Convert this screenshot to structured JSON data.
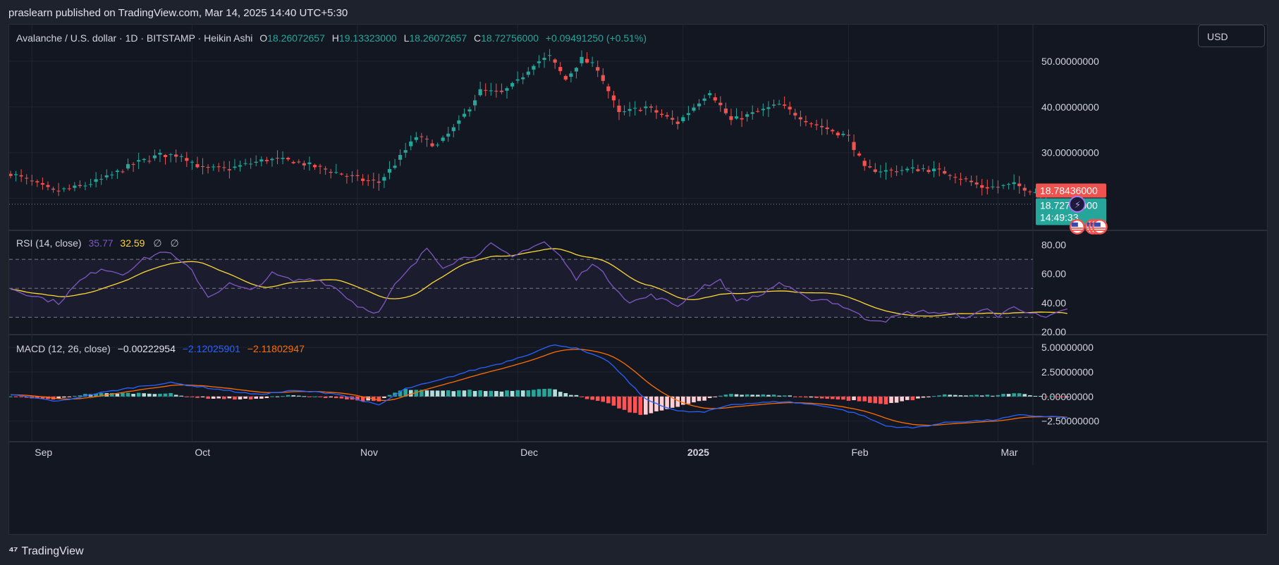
{
  "publisher_line": "praslearn published on TradingView.com, Mar 14, 2025 14:40 UTC+5:30",
  "footer_brand": "TradingView",
  "currency_button": "USD",
  "header": {
    "symbol": "Avalanche / U.S. dollar · 1D · BITSTAMP · Heikin Ashi",
    "o_label": "O",
    "o_value": "18.26072657",
    "h_label": "H",
    "h_value": "19.13323000",
    "l_label": "L",
    "l_value": "18.26072657",
    "c_label": "C",
    "c_value": "18.72756000",
    "change": "+0.09491250 (+0.51%)"
  },
  "rsi_header": {
    "label": "RSI (14, close)",
    "rsi_value": "35.77",
    "ma_value": "32.59",
    "extra1": "∅",
    "extra2": "∅"
  },
  "macd_header": {
    "label": "MACD (12, 26, close)",
    "hist_value": "−0.00222954",
    "macd_value": "−2.12025901",
    "signal_value": "−2.11802947"
  },
  "price_tags": {
    "last_price": "18.78436000",
    "close_price": "18.72756000",
    "countdown": "14:49:33"
  },
  "colors": {
    "up": "#26a69a",
    "down": "#ef5350",
    "rsi": "#7e57c2",
    "rsi_ma": "#fdd835",
    "macd": "#2962ff",
    "signal": "#ff6d00",
    "hist_up_strong": "#26a69a",
    "hist_up_weak": "#b2dfdb",
    "hist_down_strong": "#ff5252",
    "hist_down_weak": "#ffcdd2",
    "accent": "#787b86"
  },
  "icons": {
    "lightning": "lightning-icon",
    "flag": "us-flag-icon"
  },
  "chart_data": {
    "type": "candlestick",
    "title": "Avalanche / U.S. dollar · 1D · BITSTAMP · Heikin Ashi",
    "x_tick_labels": [
      "Sep",
      "Oct",
      "Nov",
      "Dec",
      "2025",
      "Feb",
      "Mar"
    ],
    "price_axis": {
      "ticks": [
        "50.00000000",
        "40.00000000",
        "30.00000000"
      ],
      "ylim": [
        13,
        58
      ]
    },
    "rsi_axis": {
      "ticks": [
        "80.00",
        "60.00",
        "40.00",
        "20.00"
      ],
      "ylim": [
        18,
        90
      ],
      "bands": [
        70,
        50,
        30
      ]
    },
    "macd_axis": {
      "ticks": [
        "5.00000000",
        "2.50000000",
        "0.00000000",
        "−2.50000000"
      ],
      "ylim": [
        -4.6,
        6.3
      ]
    },
    "price_keypoints": [
      [
        "2024-08-28",
        25.5
      ],
      [
        "2024-09-05",
        21.5
      ],
      [
        "2024-09-10",
        22.5
      ],
      [
        "2024-09-15",
        24.5
      ],
      [
        "2024-09-20",
        27.5
      ],
      [
        "2024-09-25",
        29.5
      ],
      [
        "2024-09-29",
        29.5
      ],
      [
        "2024-10-03",
        26.5
      ],
      [
        "2024-10-08",
        26.5
      ],
      [
        "2024-10-15",
        28.5
      ],
      [
        "2024-10-20",
        28.2
      ],
      [
        "2024-10-27",
        26.0
      ],
      [
        "2024-11-02",
        24.0
      ],
      [
        "2024-11-05",
        23.5
      ],
      [
        "2024-11-08",
        27.5
      ],
      [
        "2024-11-12",
        33.5
      ],
      [
        "2024-11-16",
        31.5
      ],
      [
        "2024-11-20",
        36.5
      ],
      [
        "2024-11-24",
        43.5
      ],
      [
        "2024-11-28",
        43.0
      ],
      [
        "2024-12-01",
        45.5
      ],
      [
        "2024-12-04",
        49.5
      ],
      [
        "2024-12-07",
        51.0
      ],
      [
        "2024-12-10",
        46.0
      ],
      [
        "2024-12-13",
        50.5
      ],
      [
        "2024-12-16",
        48.5
      ],
      [
        "2024-12-20",
        38.5
      ],
      [
        "2024-12-25",
        40.0
      ],
      [
        "2024-12-31",
        36.5
      ],
      [
        "2025-01-06",
        43.5
      ],
      [
        "2025-01-10",
        37.0
      ],
      [
        "2025-01-14",
        38.5
      ],
      [
        "2025-01-19",
        40.5
      ],
      [
        "2025-01-25",
        36.5
      ],
      [
        "2025-02-01",
        33.5
      ],
      [
        "2025-02-04",
        26.5
      ],
      [
        "2025-02-08",
        26.0
      ],
      [
        "2025-02-15",
        26.5
      ],
      [
        "2025-02-20",
        25.5
      ],
      [
        "2025-02-26",
        22.5
      ],
      [
        "2025-03-01",
        22.5
      ],
      [
        "2025-03-04",
        23.0
      ],
      [
        "2025-03-08",
        21.5
      ],
      [
        "2025-03-11",
        18.5
      ],
      [
        "2025-03-14",
        18.73
      ]
    ],
    "rsi_keypoints": [
      [
        "2024-08-28",
        50
      ],
      [
        "2024-09-02",
        44
      ],
      [
        "2024-09-06",
        40
      ],
      [
        "2024-09-10",
        55
      ],
      [
        "2024-09-14",
        64
      ],
      [
        "2024-09-18",
        60
      ],
      [
        "2024-09-22",
        70
      ],
      [
        "2024-09-26",
        76
      ],
      [
        "2024-10-01",
        62
      ],
      [
        "2024-10-04",
        44
      ],
      [
        "2024-10-08",
        53
      ],
      [
        "2024-10-12",
        48
      ],
      [
        "2024-10-16",
        60
      ],
      [
        "2024-10-20",
        55
      ],
      [
        "2024-10-24",
        57
      ],
      [
        "2024-10-28",
        50
      ],
      [
        "2024-11-01",
        38
      ],
      [
        "2024-11-05",
        33
      ],
      [
        "2024-11-08",
        52
      ],
      [
        "2024-11-12",
        68
      ],
      [
        "2024-11-14",
        78
      ],
      [
        "2024-11-17",
        65
      ],
      [
        "2024-11-20",
        70
      ],
      [
        "2024-11-23",
        73
      ],
      [
        "2024-11-26",
        80
      ],
      [
        "2024-11-30",
        71
      ],
      [
        "2024-12-03",
        78
      ],
      [
        "2024-12-06",
        82
      ],
      [
        "2024-12-09",
        72
      ],
      [
        "2024-12-12",
        56
      ],
      [
        "2024-12-15",
        68
      ],
      [
        "2024-12-18",
        56
      ],
      [
        "2024-12-22",
        40
      ],
      [
        "2024-12-26",
        45
      ],
      [
        "2024-12-31",
        38
      ],
      [
        "2025-01-05",
        52
      ],
      [
        "2025-01-08",
        55
      ],
      [
        "2025-01-11",
        42
      ],
      [
        "2025-01-15",
        44
      ],
      [
        "2025-01-19",
        54
      ],
      [
        "2025-01-24",
        43
      ],
      [
        "2025-01-28",
        42
      ],
      [
        "2025-02-01",
        36
      ],
      [
        "2025-02-04",
        29
      ],
      [
        "2025-02-08",
        28
      ],
      [
        "2025-02-12",
        33
      ],
      [
        "2025-02-16",
        34
      ],
      [
        "2025-02-20",
        32
      ],
      [
        "2025-02-24",
        30
      ],
      [
        "2025-02-27",
        37
      ],
      [
        "2025-03-01",
        30
      ],
      [
        "2025-03-04",
        38
      ],
      [
        "2025-03-07",
        33
      ],
      [
        "2025-03-10",
        29
      ],
      [
        "2025-03-14",
        35.77
      ]
    ],
    "macd_keypoints": [
      [
        "2024-08-28",
        0.2
      ],
      [
        "2024-09-06",
        -0.5
      ],
      [
        "2024-09-13",
        0.3
      ],
      [
        "2024-09-22",
        1.1
      ],
      [
        "2024-09-27",
        1.4
      ],
      [
        "2024-10-05",
        0.8
      ],
      [
        "2024-10-13",
        0.2
      ],
      [
        "2024-10-20",
        0.6
      ],
      [
        "2024-10-28",
        0.3
      ],
      [
        "2024-11-05",
        -0.9
      ],
      [
        "2024-11-10",
        0.8
      ],
      [
        "2024-11-16",
        1.6
      ],
      [
        "2024-11-22",
        2.6
      ],
      [
        "2024-11-28",
        3.4
      ],
      [
        "2024-12-03",
        4.3
      ],
      [
        "2024-12-08",
        5.3
      ],
      [
        "2024-12-12",
        4.9
      ],
      [
        "2024-12-18",
        3.6
      ],
      [
        "2024-12-25",
        -0.3
      ],
      [
        "2024-12-31",
        -1.5
      ],
      [
        "2025-01-05",
        -1.6
      ],
      [
        "2025-01-10",
        -0.8
      ],
      [
        "2025-01-20",
        -0.5
      ],
      [
        "2025-01-28",
        -1.0
      ],
      [
        "2025-02-03",
        -1.8
      ],
      [
        "2025-02-08",
        -3.0
      ],
      [
        "2025-02-13",
        -3.2
      ],
      [
        "2025-02-20",
        -2.6
      ],
      [
        "2025-02-28",
        -2.4
      ],
      [
        "2025-03-05",
        -1.9
      ],
      [
        "2025-03-14",
        -2.12
      ]
    ],
    "current": {
      "open": 18.26072657,
      "high": 19.13323,
      "low": 18.26072657,
      "close": 18.72756,
      "last": 18.78436,
      "rsi": 35.77,
      "rsi_ma": 32.59,
      "macd": -2.12025901,
      "signal": -2.11802947,
      "hist": -0.00222954
    }
  }
}
